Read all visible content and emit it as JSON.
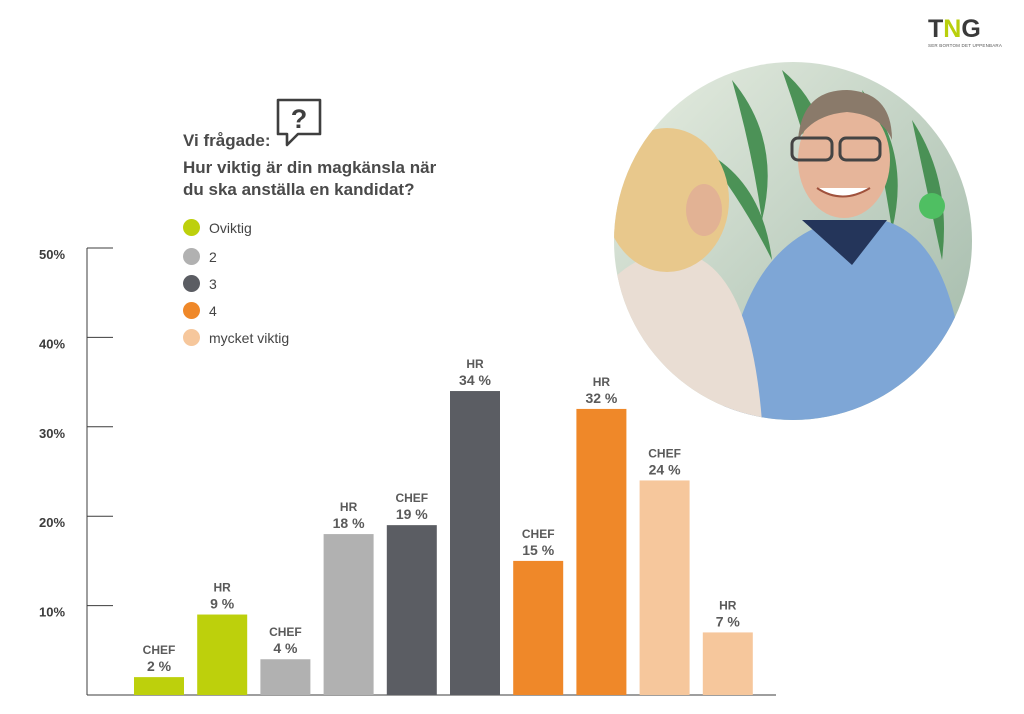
{
  "logo": {
    "mark_left": "T",
    "mark_mid": "N",
    "mark_right": "G",
    "tagline": "SER BORTOM DET UPPENBARA"
  },
  "question": {
    "icon": "question-speech-bubble-icon",
    "lead": "Vi frågade:",
    "text_line1": "Hur viktig är din magkänsla när",
    "text_line2": "du ska anställa en kandidat?"
  },
  "legend": [
    {
      "label": "Oviktig",
      "color": "#bdd00c"
    },
    {
      "label": "2",
      "color": "#b1b1b1"
    },
    {
      "label": "3",
      "color": "#5b5d63"
    },
    {
      "label": "4",
      "color": "#ef8829"
    },
    {
      "label": "mycket viktig",
      "color": "#f6c79c"
    }
  ],
  "photo": {
    "description_icon": "interview-photo"
  },
  "chart_data": {
    "type": "bar",
    "ylim": [
      0,
      50
    ],
    "yticks": [
      10,
      20,
      30,
      40,
      50
    ],
    "ytick_labels": [
      "10%",
      "20%",
      "30%",
      "40%",
      "50%"
    ],
    "grid": false,
    "bars": [
      {
        "category": "CHEF",
        "value": 2,
        "label": "2 %",
        "level": "Oviktig",
        "color": "#bdd00c"
      },
      {
        "category": "HR",
        "value": 9,
        "label": "9 %",
        "level": "Oviktig",
        "color": "#bdd00c"
      },
      {
        "category": "CHEF",
        "value": 4,
        "label": "4 %",
        "level": "2",
        "color": "#b1b1b1"
      },
      {
        "category": "HR",
        "value": 18,
        "label": "18 %",
        "level": "2",
        "color": "#b1b1b1"
      },
      {
        "category": "CHEF",
        "value": 19,
        "label": "19 %",
        "level": "3",
        "color": "#5b5d63"
      },
      {
        "category": "HR",
        "value": 34,
        "label": "34 %",
        "level": "3",
        "color": "#5b5d63"
      },
      {
        "category": "CHEF",
        "value": 15,
        "label": "15 %",
        "level": "4",
        "color": "#ef8829"
      },
      {
        "category": "HR",
        "value": 32,
        "label": "32 %",
        "level": "4",
        "color": "#ef8829"
      },
      {
        "category": "CHEF",
        "value": 24,
        "label": "24 %",
        "level": "mycket viktig",
        "color": "#f6c79c"
      },
      {
        "category": "HR",
        "value": 7,
        "label": "7 %",
        "level": "mycket viktig",
        "color": "#f6c79c"
      }
    ]
  }
}
